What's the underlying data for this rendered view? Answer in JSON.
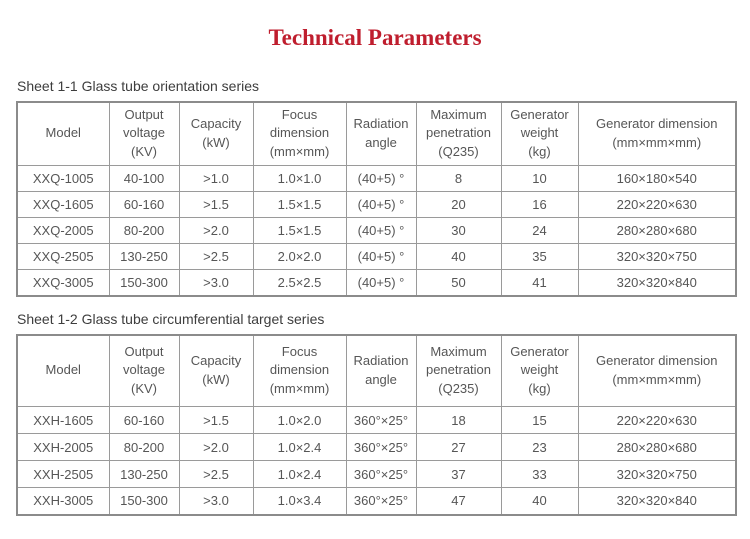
{
  "page": {
    "title": "Technical Parameters"
  },
  "colors": {
    "title_red": "#bf1e2e",
    "cell_text_gray": "#565656",
    "border_gray": "#9a9a9a"
  },
  "tables": [
    {
      "caption": "Sheet 1-1 Glass tube orientation series",
      "headers": [
        "Model",
        "Output\nvoltage\n(KV)",
        "Capacity\n(kW)",
        "Focus\ndimension\n(mm×mm)",
        "Radiation\nangle",
        "Maximum\npenetration\n(Q235)",
        "Generator\nweight\n(kg)",
        "Generator dimension\n(mm×mm×mm)"
      ],
      "rows": [
        [
          "XXQ-1005",
          "40-100",
          ">1.0",
          "1.0×1.0",
          "(40+5) °",
          "8",
          "10",
          "160×180×540"
        ],
        [
          "XXQ-1605",
          "60-160",
          ">1.5",
          "1.5×1.5",
          "(40+5) °",
          "20",
          "16",
          "220×220×630"
        ],
        [
          "XXQ-2005",
          "80-200",
          ">2.0",
          "1.5×1.5",
          "(40+5) °",
          "30",
          "24",
          "280×280×680"
        ],
        [
          "XXQ-2505",
          "130-250",
          ">2.5",
          "2.0×2.0",
          "(40+5) °",
          "40",
          "35",
          "320×320×750"
        ],
        [
          "XXQ-3005",
          "150-300",
          ">3.0",
          "2.5×2.5",
          "(40+5) °",
          "50",
          "41",
          "320×320×840"
        ]
      ]
    },
    {
      "caption": "Sheet 1-2 Glass tube circumferential target series",
      "headers": [
        "Model",
        "Output\nvoltage\n(KV)",
        "Capacity\n(kW)",
        "Focus\ndimension\n(mm×mm)",
        "Radiation\nangle",
        "Maximum\npenetration\n(Q235)",
        "Generator\nweight\n(kg)",
        "Generator dimension\n(mm×mm×mm)"
      ],
      "rows": [
        [
          "XXH-1605",
          "60-160",
          ">1.5",
          "1.0×2.0",
          "360°×25°",
          "18",
          "15",
          "220×220×630"
        ],
        [
          "XXH-2005",
          "80-200",
          ">2.0",
          "1.0×2.4",
          "360°×25°",
          "27",
          "23",
          "280×280×680"
        ],
        [
          "XXH-2505",
          "130-250",
          ">2.5",
          "1.0×2.4",
          "360°×25°",
          "37",
          "33",
          "320×320×750"
        ],
        [
          "XXH-3005",
          "150-300",
          ">3.0",
          "1.0×3.4",
          "360°×25°",
          "47",
          "40",
          "320×320×840"
        ]
      ]
    }
  ]
}
